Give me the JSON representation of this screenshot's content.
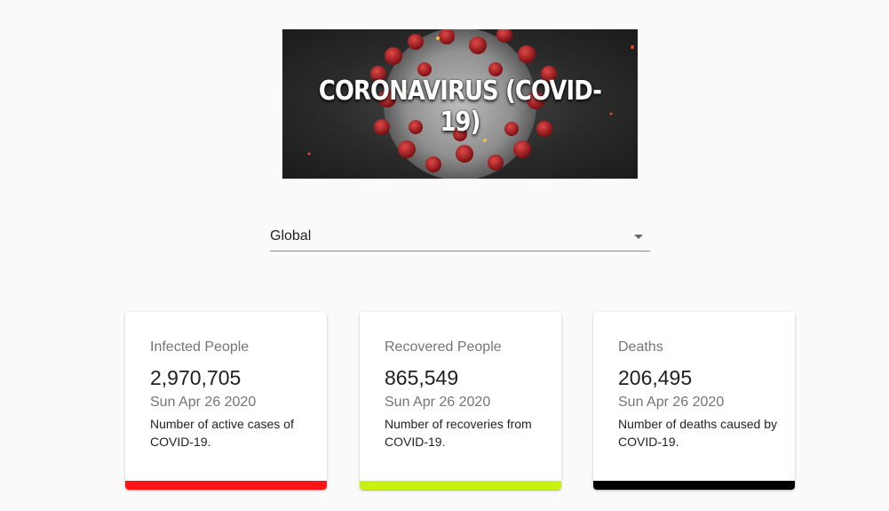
{
  "banner": {
    "title": "CORONAVIRUS (COVID-19)"
  },
  "country_select": {
    "value": "Global"
  },
  "cards": {
    "infected": {
      "title": "Infected People",
      "value": "2,970,705",
      "date": "Sun Apr 26 2020",
      "description": "Number of active cases of COVID-19.",
      "bar_color": "#ff1414"
    },
    "recovered": {
      "title": "Recovered People",
      "value": "865,549",
      "date": "Sun Apr 26 2020",
      "description": "Number of recoveries from COVID-19.",
      "bar_color": "#c6f20c"
    },
    "deaths": {
      "title": "Deaths",
      "value": "206,495",
      "date": "Sun Apr 26 2020",
      "description": "Number of deaths caused by COVID-19.",
      "bar_color": "#000000"
    }
  }
}
